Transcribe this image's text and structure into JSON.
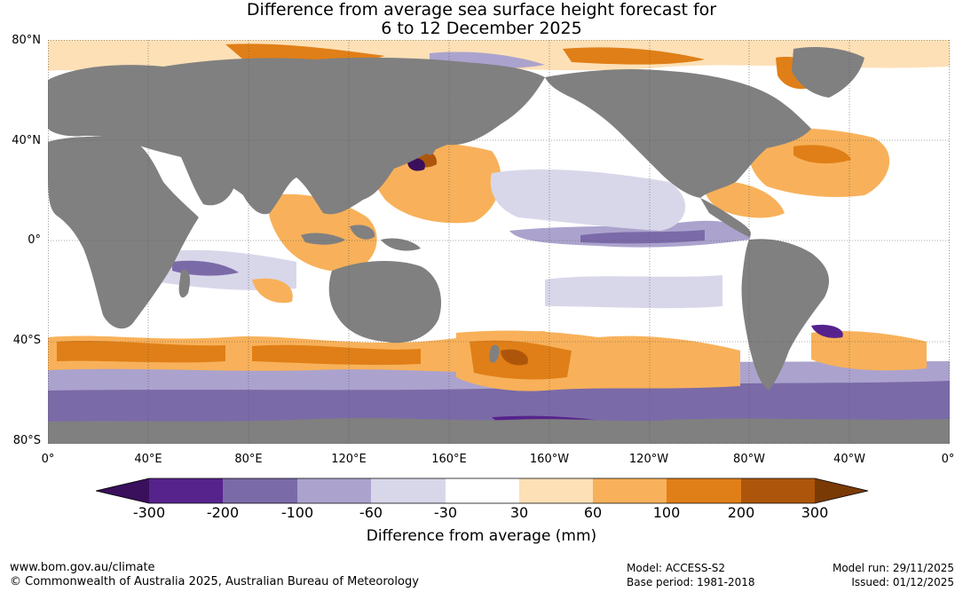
{
  "title": {
    "line1": "Difference from average sea surface height forecast for",
    "line2": "6 to 12 December 2025"
  },
  "axes": {
    "lat_labels": [
      "80°N",
      "40°N",
      "0°",
      "40°S",
      "80°S"
    ],
    "lon_labels": [
      "0°",
      "40°E",
      "80°E",
      "120°E",
      "160°E",
      "160°W",
      "120°W",
      "80°W",
      "40°W",
      "0°"
    ]
  },
  "legend": {
    "label": "Difference from average (mm)",
    "ticks": [
      "-300",
      "-200",
      "-100",
      "-60",
      "-30",
      "30",
      "60",
      "100",
      "200",
      "300"
    ],
    "colors": [
      "#3a0f5c",
      "#56238c",
      "#7b6aa8",
      "#aba3cd",
      "#d8d7ea",
      "#ffffff",
      "#fde0b6",
      "#f8b15a",
      "#e07f17",
      "#ad560b",
      "#7a3a06"
    ]
  },
  "colors": {
    "land": "#808080",
    "ocean_neutral": "#ffffff"
  },
  "footer": {
    "url": "www.bom.gov.au/climate",
    "copyright": "© Commonwealth of Australia 2025, Australian Bureau of Meteorology",
    "model": "Model: ACCESS-S2",
    "base_period": "Base period: 1981-2018",
    "model_run": "Model run: 29/11/2025",
    "issued": "Issued: 01/12/2025"
  }
}
